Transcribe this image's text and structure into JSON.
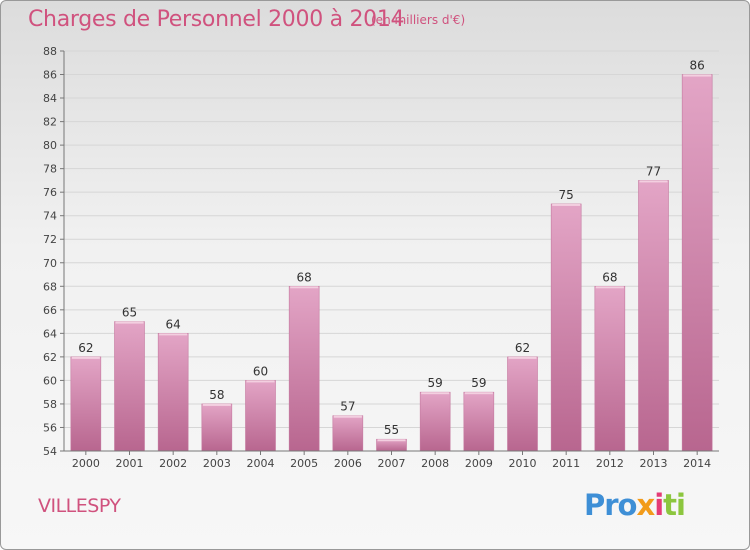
{
  "chart_data": {
    "type": "bar",
    "title": "Charges de Personnel 2000 à 2014",
    "subtitle": "(en milliers d'€)",
    "categories": [
      "2000",
      "2001",
      "2002",
      "2003",
      "2004",
      "2005",
      "2006",
      "2007",
      "2008",
      "2009",
      "2010",
      "2011",
      "2012",
      "2013",
      "2014"
    ],
    "values": [
      62,
      65,
      64,
      58,
      60,
      68,
      57,
      55,
      59,
      59,
      62,
      75,
      68,
      77,
      86
    ],
    "ylim": [
      54,
      88
    ],
    "yticks": [
      54,
      56,
      58,
      60,
      62,
      64,
      66,
      68,
      70,
      72,
      74,
      76,
      78,
      80,
      82,
      84,
      86,
      88
    ],
    "grid": true,
    "bar_color": "#d680a8"
  },
  "commune": "VILLESPY",
  "logo": [
    "Pro",
    "x",
    "i",
    "ti"
  ]
}
